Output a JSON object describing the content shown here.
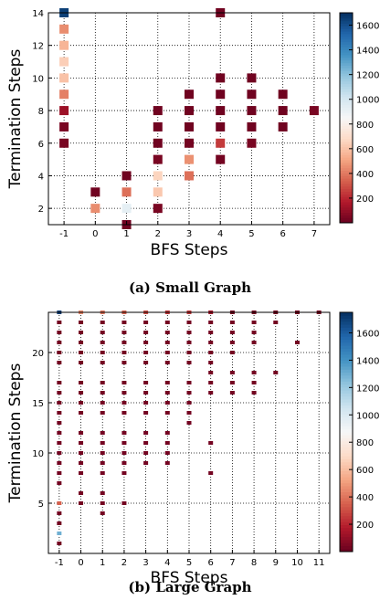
{
  "colors": {
    "scale": [
      "#67001f",
      "#b2182b",
      "#d6604d",
      "#f4a582",
      "#fddbc7",
      "#f7f7f7",
      "#d1e5f0",
      "#92c5de",
      "#4393c3",
      "#2166ac",
      "#053061"
    ]
  },
  "chart_data": [
    {
      "type": "heatmap",
      "caption": "(a) Small Graph",
      "xlabel": "BFS Steps",
      "ylabel": "Termination Steps",
      "xlim": [
        -1.5,
        7.5
      ],
      "ylim": [
        1,
        14
      ],
      "xticks": [
        -1,
        0,
        1,
        2,
        3,
        4,
        5,
        6,
        7
      ],
      "yticks": [
        2,
        4,
        6,
        8,
        10,
        12,
        14
      ],
      "colorbar": {
        "min": 0,
        "max": 1700,
        "ticks": [
          200,
          400,
          600,
          800,
          1000,
          1200,
          1400,
          1600
        ]
      },
      "grid": true,
      "cells": [
        [
          -1,
          14,
          1650
        ],
        [
          -1,
          13,
          450
        ],
        [
          -1,
          12,
          560
        ],
        [
          -1,
          11,
          640
        ],
        [
          -1,
          10,
          600
        ],
        [
          -1,
          9,
          420
        ],
        [
          -1,
          8,
          120
        ],
        [
          -1,
          7,
          40
        ],
        [
          -1,
          6,
          40
        ],
        [
          0,
          3,
          20
        ],
        [
          0,
          2,
          450
        ],
        [
          1,
          4,
          20
        ],
        [
          1,
          3,
          380
        ],
        [
          1,
          2,
          930
        ],
        [
          1,
          1,
          20
        ],
        [
          2,
          2,
          40
        ],
        [
          2,
          3,
          620
        ],
        [
          2,
          4,
          660
        ],
        [
          2,
          5,
          40
        ],
        [
          2,
          6,
          20
        ],
        [
          2,
          7,
          20
        ],
        [
          2,
          8,
          20
        ],
        [
          3,
          4,
          380
        ],
        [
          3,
          5,
          460
        ],
        [
          3,
          6,
          30
        ],
        [
          3,
          7,
          20
        ],
        [
          3,
          8,
          20
        ],
        [
          3,
          9,
          20
        ],
        [
          4,
          5,
          30
        ],
        [
          4,
          6,
          250
        ],
        [
          4,
          7,
          20
        ],
        [
          4,
          8,
          20
        ],
        [
          4,
          9,
          20
        ],
        [
          4,
          10,
          20
        ],
        [
          4,
          14,
          20
        ],
        [
          5,
          6,
          40
        ],
        [
          5,
          7,
          20
        ],
        [
          5,
          8,
          20
        ],
        [
          5,
          9,
          20
        ],
        [
          5,
          10,
          20
        ],
        [
          6,
          7,
          20
        ],
        [
          6,
          8,
          20
        ],
        [
          6,
          9,
          20
        ],
        [
          7,
          8,
          40
        ]
      ]
    },
    {
      "type": "heatmap",
      "caption": "(b) Large Graph",
      "xlabel": "BFS Steps",
      "ylabel": "Termination Steps",
      "xlim": [
        -1.5,
        11.5
      ],
      "ylim": [
        0,
        24
      ],
      "xticks": [
        -1,
        0,
        1,
        2,
        3,
        4,
        5,
        6,
        7,
        8,
        9,
        10,
        11
      ],
      "yticks": [
        5,
        10,
        15,
        20
      ],
      "colorbar": {
        "min": 0,
        "max": 1750,
        "ticks": [
          200,
          400,
          600,
          800,
          1000,
          1200,
          1400,
          1600
        ]
      },
      "grid": true,
      "columns": [
        {
          "x": -1,
          "ys": [
            1,
            2,
            3,
            4,
            5,
            7,
            8,
            9,
            10,
            11,
            12,
            13,
            14,
            15,
            16,
            17,
            19,
            20,
            21,
            22,
            23
          ],
          "special": {
            "24": 1700,
            "2": 1300,
            "5": 350
          }
        },
        {
          "x": 0,
          "ys": [
            5,
            6,
            8,
            9,
            10,
            11,
            12,
            14,
            15,
            16,
            17,
            19,
            20,
            21,
            22,
            23,
            24
          ],
          "special": {
            "24": 450
          }
        },
        {
          "x": 1,
          "ys": [
            4,
            5,
            6,
            8,
            9,
            10,
            11,
            12,
            14,
            15,
            16,
            17,
            19,
            20,
            21,
            22,
            23,
            24
          ],
          "special": {
            "24": 400
          }
        },
        {
          "x": 2,
          "ys": [
            5,
            8,
            9,
            10,
            11,
            12,
            14,
            15,
            16,
            17,
            19,
            20,
            21,
            22,
            23,
            24
          ],
          "special": {
            "24": 350
          }
        },
        {
          "x": 3,
          "ys": [
            9,
            10,
            11,
            12,
            14,
            15,
            16,
            17,
            19,
            20,
            21,
            22,
            23,
            24
          ],
          "special": {
            "24": 300
          }
        },
        {
          "x": 4,
          "ys": [
            9,
            10,
            11,
            12,
            14,
            15,
            16,
            17,
            19,
            20,
            21,
            22,
            23,
            24
          ],
          "special": {
            "24": 250
          }
        },
        {
          "x": 5,
          "ys": [
            13,
            14,
            15,
            16,
            17,
            19,
            20,
            21,
            22,
            23,
            24
          ],
          "special": {
            "24": 250
          }
        },
        {
          "x": 6,
          "ys": [
            8,
            11,
            16,
            17,
            18,
            19,
            20,
            21,
            22,
            23,
            24
          ],
          "special": {
            "24": 150
          }
        },
        {
          "x": 7,
          "ys": [
            16,
            17,
            18,
            20,
            21,
            22,
            23,
            24
          ],
          "special": {}
        },
        {
          "x": 8,
          "ys": [
            16,
            17,
            18,
            21,
            22,
            23,
            24
          ],
          "special": {}
        },
        {
          "x": 9,
          "ys": [
            18,
            23,
            24
          ],
          "special": {}
        },
        {
          "x": 10,
          "ys": [
            21,
            24
          ],
          "special": {}
        },
        {
          "x": 11,
          "ys": [
            24
          ],
          "special": {}
        }
      ],
      "default_value": 30
    }
  ]
}
